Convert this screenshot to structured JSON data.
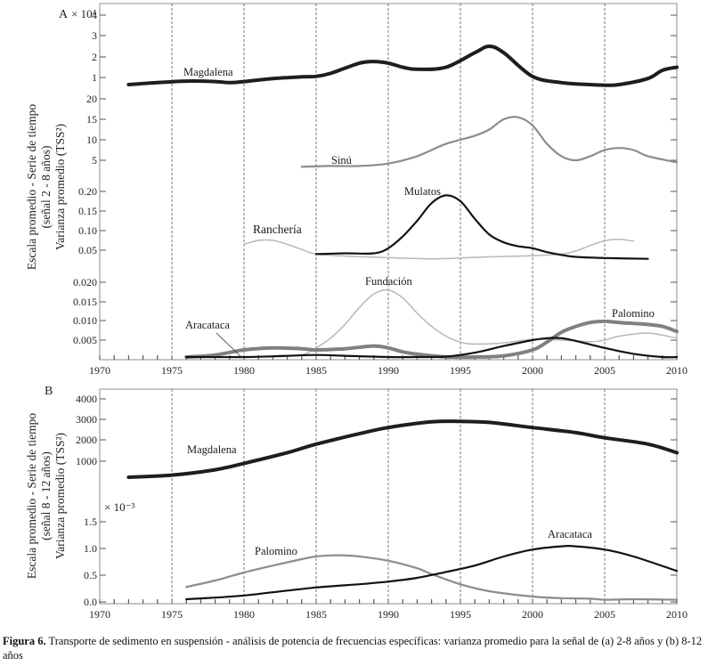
{
  "caption": {
    "label": "Figura 6.",
    "text": " Transporte de sedimento en suspensión - análisis de potencia de frecuencias específicas: varianza promedio para la señal de (a) 2-8 años y (b) 8-12 años"
  },
  "chart_data": [
    {
      "type": "line",
      "panel": "A",
      "title": "",
      "xlabel": "",
      "ylabel_lines": [
        "Escala promedio - Serie de tiempo",
        "(señal 2 - 8 años)",
        "Varianza promedio (TSS²)"
      ],
      "xlim": [
        1970,
        2010
      ],
      "x_ticks": [
        "1970",
        "1975",
        "1980",
        "1985",
        "1990",
        "1995",
        "2000",
        "2005",
        "2010"
      ],
      "dashed_vlines": [
        1975,
        1980,
        1985,
        1990,
        1995,
        2000,
        2005
      ],
      "grid": false,
      "bands": [
        {
          "id": "b1",
          "multiplier_label": "× 10⁴",
          "ticks": [
            "4",
            "3",
            "2",
            "1"
          ],
          "tick_values": [
            4,
            3,
            2,
            1
          ]
        },
        {
          "id": "b2",
          "ticks": [
            "20",
            "15",
            "10",
            "5"
          ],
          "tick_values": [
            20,
            15,
            10,
            5
          ]
        },
        {
          "id": "b3",
          "ticks": [
            "0.20",
            "0.15",
            "0.10",
            "0.05"
          ],
          "tick_values": [
            0.2,
            0.15,
            0.1,
            0.05
          ]
        },
        {
          "id": "b4",
          "ticks": [
            "0.020",
            "0.015",
            "0.010",
            "0.005"
          ],
          "tick_values": [
            0.02,
            0.015,
            0.01,
            0.005
          ]
        }
      ],
      "series": [
        {
          "name": "Magdalena",
          "band": "b1",
          "color": "#1e1e1e",
          "weight": "heavy",
          "x": [
            1972,
            1974,
            1976,
            1978,
            1979,
            1980,
            1982,
            1984,
            1985,
            1986,
            1988,
            1989,
            1990,
            1991,
            1992,
            1994,
            1996,
            1997,
            1998,
            2000,
            2002,
            2004,
            2005,
            2006,
            2008,
            2009,
            2010
          ],
          "y": [
            0.65,
            0.75,
            0.82,
            0.8,
            0.75,
            0.8,
            0.95,
            1.03,
            1.05,
            1.2,
            1.7,
            1.78,
            1.7,
            1.5,
            1.4,
            1.5,
            2.2,
            2.5,
            2.2,
            1.05,
            0.75,
            0.65,
            0.62,
            0.65,
            0.95,
            1.35,
            1.5
          ]
        },
        {
          "name": "Sinú",
          "band": "b2",
          "color": "#8c8c8c",
          "weight": "medium",
          "x": [
            1984,
            1986,
            1988,
            1990,
            1992,
            1994,
            1996,
            1997,
            1998,
            1999,
            2000,
            2001,
            2002,
            2003,
            2004,
            2005,
            2006,
            2007,
            2008,
            2010
          ],
          "y": [
            3.4,
            3.6,
            3.6,
            4.2,
            6.0,
            9.0,
            11.0,
            12.5,
            15.0,
            15.5,
            13.5,
            9.0,
            6.0,
            5.0,
            6.0,
            7.5,
            8.0,
            7.5,
            6.0,
            4.5
          ]
        },
        {
          "name": "Ranchería",
          "band": "b3",
          "color": "#b8b8b8",
          "weight": "light",
          "x": [
            1980,
            1981,
            1982,
            1983,
            1984,
            1985,
            1987,
            1990,
            1993,
            1995,
            1997,
            2000,
            2002,
            2003,
            2004,
            2005,
            2006,
            2007
          ],
          "y": [
            0.065,
            0.075,
            0.075,
            0.065,
            0.052,
            0.04,
            0.035,
            0.031,
            0.028,
            0.03,
            0.033,
            0.036,
            0.04,
            0.048,
            0.062,
            0.074,
            0.078,
            0.073
          ]
        },
        {
          "name": "Mulatos",
          "band": "b3",
          "color": "#141414",
          "weight": "medium",
          "x": [
            1985,
            1987,
            1989,
            1990,
            1991,
            1992,
            1993,
            1994,
            1995,
            1996,
            1997,
            1998,
            1999,
            2000,
            2001,
            2002,
            2003,
            2005,
            2008
          ],
          "y": [
            0.04,
            0.042,
            0.042,
            0.055,
            0.085,
            0.125,
            0.17,
            0.19,
            0.175,
            0.13,
            0.09,
            0.07,
            0.06,
            0.055,
            0.045,
            0.038,
            0.033,
            0.03,
            0.028
          ]
        },
        {
          "name": "Fundación",
          "band": "b4",
          "color": "#b8b8b8",
          "weight": "light",
          "x": [
            1982,
            1984,
            1985,
            1986,
            1987,
            1988,
            1989,
            1990,
            1991,
            1992,
            1993,
            1994,
            1995,
            1996,
            1998,
            2000,
            2002,
            2004,
            2005,
            2006,
            2008,
            2010
          ],
          "y": [
            0.0002,
            0.0012,
            0.003,
            0.0055,
            0.009,
            0.0135,
            0.017,
            0.018,
            0.016,
            0.012,
            0.0085,
            0.006,
            0.0045,
            0.004,
            0.0043,
            0.0052,
            0.005,
            0.0046,
            0.005,
            0.006,
            0.0068,
            0.0055
          ]
        },
        {
          "name": "Palomino",
          "band": "b4",
          "color": "#808080",
          "weight": "heavy",
          "x": [
            1976,
            1978,
            1980,
            1982,
            1984,
            1985,
            1987,
            1989,
            1990,
            1991,
            1992,
            1994,
            1996,
            1998,
            2000,
            2001,
            2002,
            2003,
            2004,
            2005,
            2006,
            2008,
            2009,
            2010
          ],
          "y": [
            0.0005,
            0.0012,
            0.0025,
            0.003,
            0.0028,
            0.0025,
            0.0028,
            0.0035,
            0.003,
            0.002,
            0.0014,
            0.0007,
            0.0005,
            0.001,
            0.0025,
            0.0045,
            0.007,
            0.0085,
            0.0095,
            0.0098,
            0.0095,
            0.009,
            0.0085,
            0.0072
          ]
        },
        {
          "name": "Aracataca",
          "band": "b4",
          "color": "#111111",
          "weight": "medium",
          "x": [
            1976,
            1980,
            1983,
            1985,
            1987,
            1990,
            1992,
            1994,
            1996,
            1998,
            2000,
            2001,
            2002,
            2003,
            2005,
            2007,
            2009,
            2010
          ],
          "y": [
            0.0002,
            0.0005,
            0.001,
            0.0012,
            0.001,
            0.0005,
            0.0004,
            0.0008,
            0.0018,
            0.0035,
            0.005,
            0.0055,
            0.0055,
            0.0048,
            0.003,
            0.0015,
            0.0006,
            0.0004
          ]
        }
      ],
      "annotations": [
        {
          "text": "Magdalena",
          "series": "Magdalena"
        },
        {
          "text": "Sinú",
          "series": "Sinú"
        },
        {
          "text": "Mulatos",
          "series": "Mulatos"
        },
        {
          "text": "Ranchería",
          "series": "Ranchería"
        },
        {
          "text": "Fundación",
          "series": "Fundación"
        },
        {
          "text": "Aracataca",
          "series": "Aracataca",
          "leader_line": true
        },
        {
          "text": "Palomino",
          "series": "Palomino"
        }
      ]
    },
    {
      "type": "line",
      "panel": "B",
      "title": "",
      "xlabel": "",
      "ylabel_lines": [
        "Escala promedio - Serie de tiempo",
        "(señal 8 - 12 años)",
        "Varianza promedio (TSS²)"
      ],
      "xlim": [
        1970,
        2010
      ],
      "x_ticks": [
        "1970",
        "1975",
        "1980",
        "1985",
        "1990",
        "1995",
        "2000",
        "2005",
        "2010"
      ],
      "dashed_vlines": [
        1975,
        1980,
        1985,
        1990,
        1995,
        2000,
        2005
      ],
      "grid": false,
      "bands": [
        {
          "id": "u1",
          "ticks": [
            "4000",
            "3000",
            "2000",
            "1000"
          ],
          "tick_values": [
            4000,
            3000,
            2000,
            1000
          ]
        },
        {
          "id": "u2",
          "multiplier_label": "× 10⁻³",
          "ticks": [
            "1.5",
            "1.0",
            "0.5",
            "0.0"
          ],
          "tick_values": [
            1.5,
            1.0,
            0.5,
            0.0
          ]
        }
      ],
      "series": [
        {
          "name": "Magdalena",
          "band": "u1",
          "color": "#1e1e1e",
          "weight": "heavy",
          "x": [
            1972,
            1975,
            1978,
            1980,
            1983,
            1985,
            1988,
            1990,
            1993,
            1995,
            1997,
            2000,
            2003,
            2005,
            2008,
            2010
          ],
          "y": [
            250,
            350,
            600,
            900,
            1400,
            1800,
            2300,
            2600,
            2880,
            2900,
            2850,
            2600,
            2350,
            2100,
            1800,
            1400
          ]
        },
        {
          "name": "Palomino",
          "band": "u2",
          "color": "#8c8c8c",
          "weight": "medium",
          "x": [
            1976,
            1978,
            1980,
            1982,
            1984,
            1985,
            1986,
            1987,
            1988,
            1990,
            1992,
            1993,
            1995,
            1997,
            2000,
            2002,
            2004,
            2005,
            2007,
            2010
          ],
          "y": [
            0.28,
            0.4,
            0.55,
            0.68,
            0.8,
            0.85,
            0.87,
            0.87,
            0.85,
            0.77,
            0.63,
            0.52,
            0.33,
            0.2,
            0.1,
            0.07,
            0.06,
            0.04,
            0.05,
            0.04
          ]
        },
        {
          "name": "Aracataca",
          "band": "u2",
          "color": "#111111",
          "weight": "medium",
          "x": [
            1976,
            1978,
            1980,
            1982,
            1985,
            1988,
            1990,
            1992,
            1994,
            1996,
            1998,
            2000,
            2002,
            2003,
            2005,
            2007,
            2010
          ],
          "y": [
            0.05,
            0.08,
            0.12,
            0.18,
            0.27,
            0.33,
            0.38,
            0.45,
            0.56,
            0.68,
            0.85,
            0.98,
            1.04,
            1.04,
            0.98,
            0.85,
            0.58
          ]
        }
      ],
      "annotations": [
        {
          "text": "Magdalena",
          "series": "Magdalena"
        },
        {
          "text": "Palomino",
          "series": "Palomino"
        },
        {
          "text": "Aracataca",
          "series": "Aracataca"
        }
      ]
    }
  ]
}
